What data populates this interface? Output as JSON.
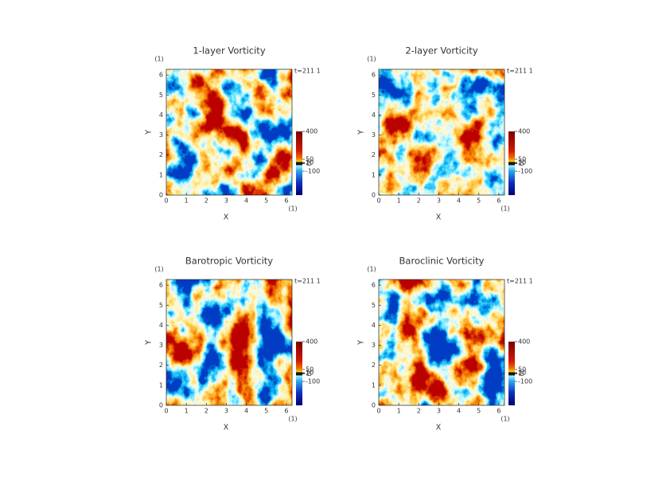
{
  "chart_data": [
    {
      "type": "heatmap",
      "title": "1-layer Vorticity",
      "xlabel": "X",
      "ylabel": "Y",
      "x_unit": "(1)",
      "y_unit": "(1)",
      "annotation": "t=211 1",
      "xlim": [
        0,
        6.2832
      ],
      "ylim": [
        0,
        6.2832
      ],
      "xticks": [
        0,
        1,
        2,
        3,
        4,
        5,
        6
      ],
      "yticks": [
        0,
        1,
        2,
        3,
        4,
        5,
        6
      ],
      "colorbar": {
        "clim": [
          -400,
          400
        ],
        "ticks": [
          400,
          50,
          10,
          1,
          -5,
          -100
        ]
      }
    },
    {
      "type": "heatmap",
      "title": "2-layer Vorticity",
      "xlabel": "X",
      "ylabel": "Y",
      "x_unit": "(1)",
      "y_unit": "(1)",
      "annotation": "t=211 1",
      "xlim": [
        0,
        6.2832
      ],
      "ylim": [
        0,
        6.2832
      ],
      "xticks": [
        0,
        1,
        2,
        3,
        4,
        5,
        6
      ],
      "yticks": [
        0,
        1,
        2,
        3,
        4,
        5,
        6
      ],
      "colorbar": {
        "clim": [
          -400,
          400
        ],
        "ticks": [
          400,
          50,
          10,
          1,
          -5,
          -100
        ]
      }
    },
    {
      "type": "heatmap",
      "title": "Barotropic Vorticity",
      "xlabel": "X",
      "ylabel": "Y",
      "x_unit": "(1)",
      "y_unit": "(1)",
      "annotation": "t=211 1",
      "xlim": [
        0,
        6.2832
      ],
      "ylim": [
        0,
        6.2832
      ],
      "xticks": [
        0,
        1,
        2,
        3,
        4,
        5,
        6
      ],
      "yticks": [
        0,
        1,
        2,
        3,
        4,
        5,
        6
      ],
      "colorbar": {
        "clim": [
          -400,
          400
        ],
        "ticks": [
          400,
          50,
          10,
          1,
          -5,
          -100
        ]
      }
    },
    {
      "type": "heatmap",
      "title": "Baroclinic Vorticity",
      "xlabel": "X",
      "ylabel": "Y",
      "x_unit": "(1)",
      "y_unit": "(1)",
      "annotation": "t=211 1",
      "xlim": [
        0,
        6.2832
      ],
      "ylim": [
        0,
        6.2832
      ],
      "xticks": [
        0,
        1,
        2,
        3,
        4,
        5,
        6
      ],
      "yticks": [
        0,
        1,
        2,
        3,
        4,
        5,
        6
      ],
      "colorbar": {
        "clim": [
          -400,
          400
        ],
        "ticks": [
          400,
          50,
          10,
          1,
          -5,
          -100
        ]
      }
    }
  ]
}
